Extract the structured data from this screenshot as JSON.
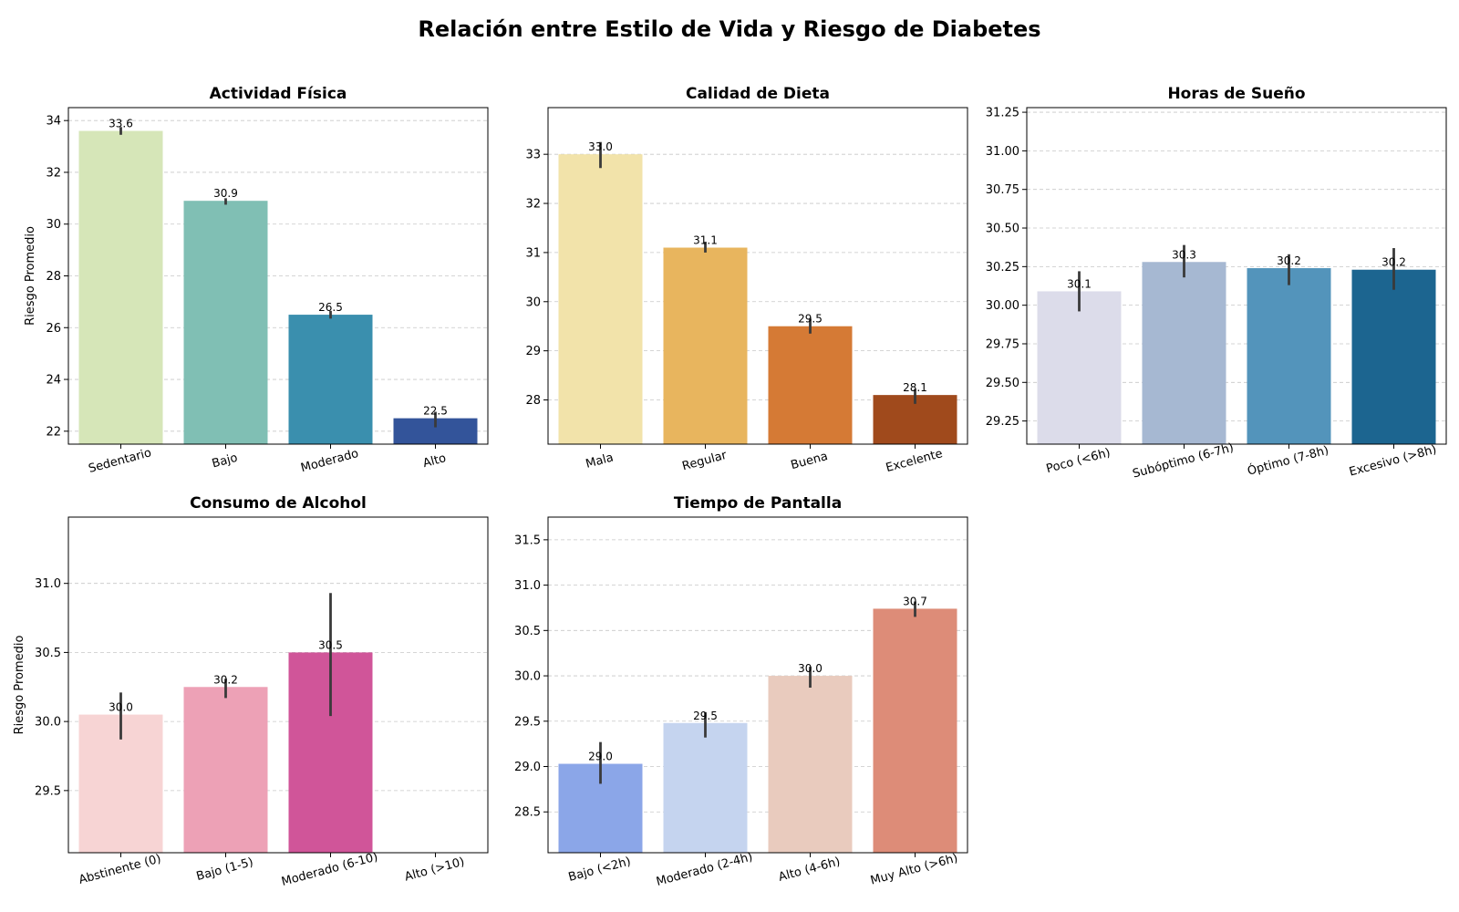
{
  "figure": {
    "title": "Relación entre Estilo de Vida y Riesgo de Diabetes"
  },
  "chart_data": [
    {
      "type": "bar",
      "title": "Actividad Física",
      "xlabel": "",
      "ylabel": "Riesgo Promedio",
      "categories": [
        "Sedentario",
        "Bajo",
        "Moderado",
        "Alto"
      ],
      "values": [
        33.6,
        30.9,
        26.5,
        22.5
      ],
      "error_low": [
        33.45,
        30.75,
        26.35,
        22.15
      ],
      "error_high": [
        33.75,
        31.0,
        26.65,
        22.75
      ],
      "data_labels": [
        "33.6",
        "30.9",
        "26.5",
        "22.5"
      ],
      "colors": [
        "#d6e6b8",
        "#80bfb4",
        "#3a8fae",
        "#33549a"
      ],
      "ylim": [
        21.5,
        34.5
      ],
      "yticks": [
        22,
        24,
        26,
        28,
        30,
        32,
        34
      ],
      "ytick_labels": [
        "22",
        "24",
        "26",
        "28",
        "30",
        "32",
        "34"
      ],
      "grid": "y-dashed"
    },
    {
      "type": "bar",
      "title": "Calidad de Dieta",
      "xlabel": "",
      "ylabel": "",
      "categories": [
        "Mala",
        "Regular",
        "Buena",
        "Excelente"
      ],
      "values": [
        33.0,
        31.1,
        29.5,
        28.1
      ],
      "error_low": [
        32.72,
        31.0,
        29.35,
        27.92
      ],
      "error_high": [
        33.25,
        31.22,
        29.65,
        28.22
      ],
      "data_labels": [
        "33.0",
        "31.1",
        "29.5",
        "28.1"
      ],
      "colors": [
        "#f2e3aa",
        "#e8b55e",
        "#d57a35",
        "#a04a1c"
      ],
      "ylim": [
        27.1,
        33.95
      ],
      "yticks": [
        28,
        29,
        30,
        31,
        32,
        33
      ],
      "ytick_labels": [
        "28",
        "29",
        "30",
        "31",
        "32",
        "33"
      ],
      "grid": "y-dashed"
    },
    {
      "type": "bar",
      "title": "Horas de Sueño",
      "xlabel": "",
      "ylabel": "",
      "categories": [
        "Poco (<6h)",
        "Subóptimo (6-7h)",
        "Óptimo (7-8h)",
        "Excesivo (>8h)"
      ],
      "values": [
        30.09,
        30.28,
        30.24,
        30.23
      ],
      "error_low": [
        29.96,
        30.18,
        30.13,
        30.1
      ],
      "error_high": [
        30.22,
        30.39,
        30.33,
        30.37
      ],
      "data_labels": [
        "30.1",
        "30.3",
        "30.2",
        "30.2"
      ],
      "colors": [
        "#dcdcea",
        "#a6b8d2",
        "#5394bb",
        "#1c6590"
      ],
      "ylim": [
        29.1,
        31.28
      ],
      "yticks": [
        29.25,
        29.5,
        29.75,
        30.0,
        30.25,
        30.5,
        30.75,
        31.0,
        31.25
      ],
      "ytick_labels": [
        "29.25",
        "29.50",
        "29.75",
        "30.00",
        "30.25",
        "30.50",
        "30.75",
        "31.00",
        "31.25"
      ],
      "grid": "y-dashed"
    },
    {
      "type": "bar",
      "title": "Consumo de Alcohol",
      "xlabel": "",
      "ylabel": "Riesgo Promedio",
      "categories": [
        "Abstinente (0)",
        "Bajo (1-5)",
        "Moderado (6-10)",
        "Alto (>10)"
      ],
      "values": [
        30.05,
        30.25,
        30.5,
        null
      ],
      "error_low": [
        29.87,
        30.17,
        30.04,
        null
      ],
      "error_high": [
        30.21,
        30.31,
        30.93,
        null
      ],
      "data_labels": [
        "30.0",
        "30.2",
        "30.5",
        ""
      ],
      "colors": [
        "#f7d4d4",
        "#eda1b6",
        "#d05599",
        "#b83d86"
      ],
      "ylim": [
        29.05,
        31.48
      ],
      "yticks": [
        29.5,
        30.0,
        30.5,
        31.0
      ],
      "ytick_labels": [
        "29.5",
        "30.0",
        "30.5",
        "31.0"
      ],
      "grid": "y-dashed"
    },
    {
      "type": "bar",
      "title": "Tiempo de Pantalla",
      "xlabel": "",
      "ylabel": "",
      "categories": [
        "Bajo (<2h)",
        "Moderado (2-4h)",
        "Alto (4-6h)",
        "Muy Alto (>6h)"
      ],
      "values": [
        29.03,
        29.48,
        30.0,
        30.74
      ],
      "error_low": [
        28.81,
        29.32,
        29.87,
        30.65
      ],
      "error_high": [
        29.27,
        29.6,
        30.1,
        30.82
      ],
      "data_labels": [
        "29.0",
        "29.5",
        "30.0",
        "30.7"
      ],
      "colors": [
        "#8ba6e8",
        "#c5d4ef",
        "#e9cbbe",
        "#dd8c78"
      ],
      "ylim": [
        28.05,
        31.75
      ],
      "yticks": [
        28.5,
        29.0,
        29.5,
        30.0,
        30.5,
        31.0,
        31.5
      ],
      "ytick_labels": [
        "28.5",
        "29.0",
        "29.5",
        "30.0",
        "30.5",
        "31.0",
        "31.5"
      ],
      "grid": "y-dashed"
    }
  ]
}
